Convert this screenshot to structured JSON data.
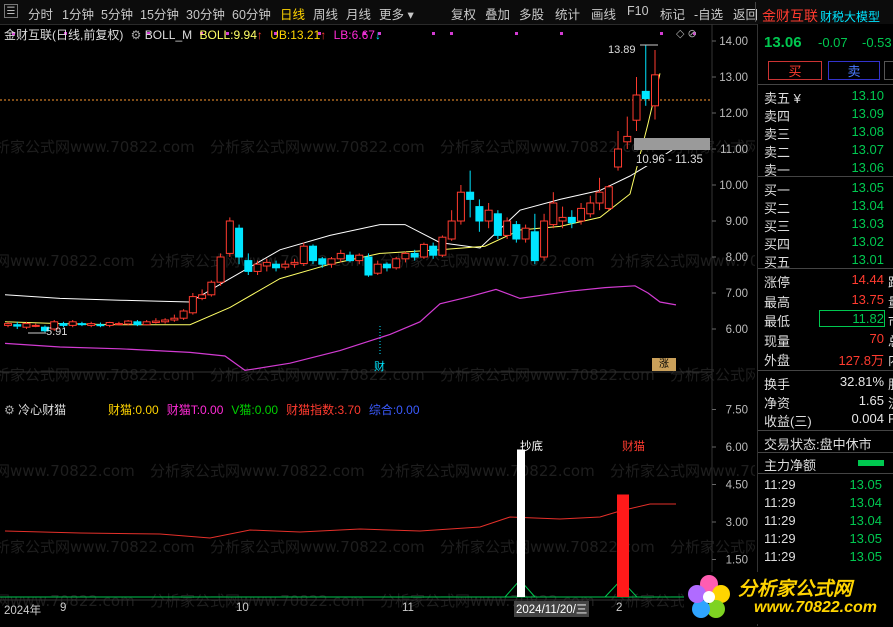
{
  "toolbar": {
    "icon": "app-menu-icon",
    "periods": [
      "分时",
      "1分钟",
      "5分钟",
      "15分钟",
      "30分钟",
      "60分钟",
      "日线",
      "周线",
      "月线",
      "更多"
    ],
    "active_period": "日线",
    "tools": [
      "复权",
      "叠加",
      "多股",
      "统计",
      "画线",
      "F10",
      "标记",
      "-自选",
      "返回"
    ]
  },
  "main_chart": {
    "title": "金财互联(日线,前复权)",
    "indicator_name": "BOLL_M",
    "boll_label": "BOLL:",
    "boll_value": "9.94",
    "ub_label": "UB:",
    "ub_value": "13.21",
    "lb_label": "LB:",
    "lb_value": "6.67",
    "high_marker": "13.89",
    "low_marker": "5.91",
    "range_label": "10.96 - 11.35",
    "cai_marker": "财",
    "tag_label": "涨",
    "price_axis": [
      "14.00",
      "13.00",
      "12.00",
      "11.00",
      "10.00",
      "9.00",
      "8.00",
      "7.00",
      "6.00"
    ]
  },
  "sub_chart": {
    "name": "冷心财猫",
    "values": [
      {
        "label": "财猫:",
        "value": "0.00",
        "color": "#ffd400"
      },
      {
        "label": "财猫T:",
        "value": "0.00",
        "color": "#ff2bd6"
      },
      {
        "label": "V猫:",
        "value": "0.00",
        "color": "#00d000"
      },
      {
        "label": "财猫指数:",
        "value": "3.70",
        "color": "#ff3b2f"
      },
      {
        "label": "综合:",
        "value": "0.00",
        "color": "#3b5bff"
      }
    ],
    "bar_label_white": "抄底",
    "bar_label_red": "财猫",
    "axis": [
      "7.50",
      "6.00",
      "4.50",
      "3.00",
      "1.50"
    ]
  },
  "date_axis": {
    "labels": [
      "2024年",
      "9",
      "10",
      "11",
      "2"
    ],
    "cursor_date": "2024/11/20/三"
  },
  "watermark": "分析家公式网www.70822.com",
  "panel": {
    "stock_name": "金财互联",
    "scroll_text": "财税大模型",
    "price": "13.06",
    "change": "-0.07",
    "change_pct": "-0.53",
    "buy_label": "买",
    "sell_label": "卖",
    "asks": [
      {
        "label": "卖五",
        "value": "13.10",
        "mark": "¥"
      },
      {
        "label": "卖四",
        "value": "13.09"
      },
      {
        "label": "卖三",
        "value": "13.08"
      },
      {
        "label": "卖二",
        "value": "13.07"
      },
      {
        "label": "卖一",
        "value": "13.06"
      }
    ],
    "bids": [
      {
        "label": "买一",
        "value": "13.05"
      },
      {
        "label": "买二",
        "value": "13.04"
      },
      {
        "label": "买三",
        "value": "13.03"
      },
      {
        "label": "买四",
        "value": "13.02"
      },
      {
        "label": "买五",
        "value": "13.01"
      }
    ],
    "stats": [
      {
        "label": "涨停",
        "value": "14.44",
        "suffix": "跌"
      },
      {
        "label": "最高",
        "value": "13.75",
        "suffix": "量"
      },
      {
        "label": "最低",
        "value": "11.82",
        "suffix": "市"
      },
      {
        "label": "现量",
        "value": "70",
        "suffix": "总"
      },
      {
        "label": "外盘",
        "value": "127.8万",
        "suffix": "内"
      }
    ],
    "stats2": [
      {
        "label": "换手",
        "value": "32.81%",
        "suffix": "股"
      },
      {
        "label": "净资",
        "value": "1.65",
        "suffix": "流"
      },
      {
        "label": "收益(三)",
        "value": "0.004",
        "suffix": "P"
      }
    ],
    "trade_status_label": "交易状态:",
    "trade_status": "盘中休市",
    "net_flow_label": "主力净额",
    "ticks": [
      {
        "time": "11:29",
        "price": "13.05"
      },
      {
        "time": "11:29",
        "price": "13.04"
      },
      {
        "time": "11:29",
        "price": "13.04"
      },
      {
        "time": "11:29",
        "price": "13.05"
      },
      {
        "time": "11:29",
        "price": "13.05"
      }
    ],
    "logo_text": "分析家公式网",
    "logo_url": "www.70822.com"
  },
  "colors": {
    "up": "#ff3b2f",
    "down": "#00e5ff",
    "mid": "#ffff66",
    "upper": "#ffffff",
    "lower": "#d23bd2"
  }
}
